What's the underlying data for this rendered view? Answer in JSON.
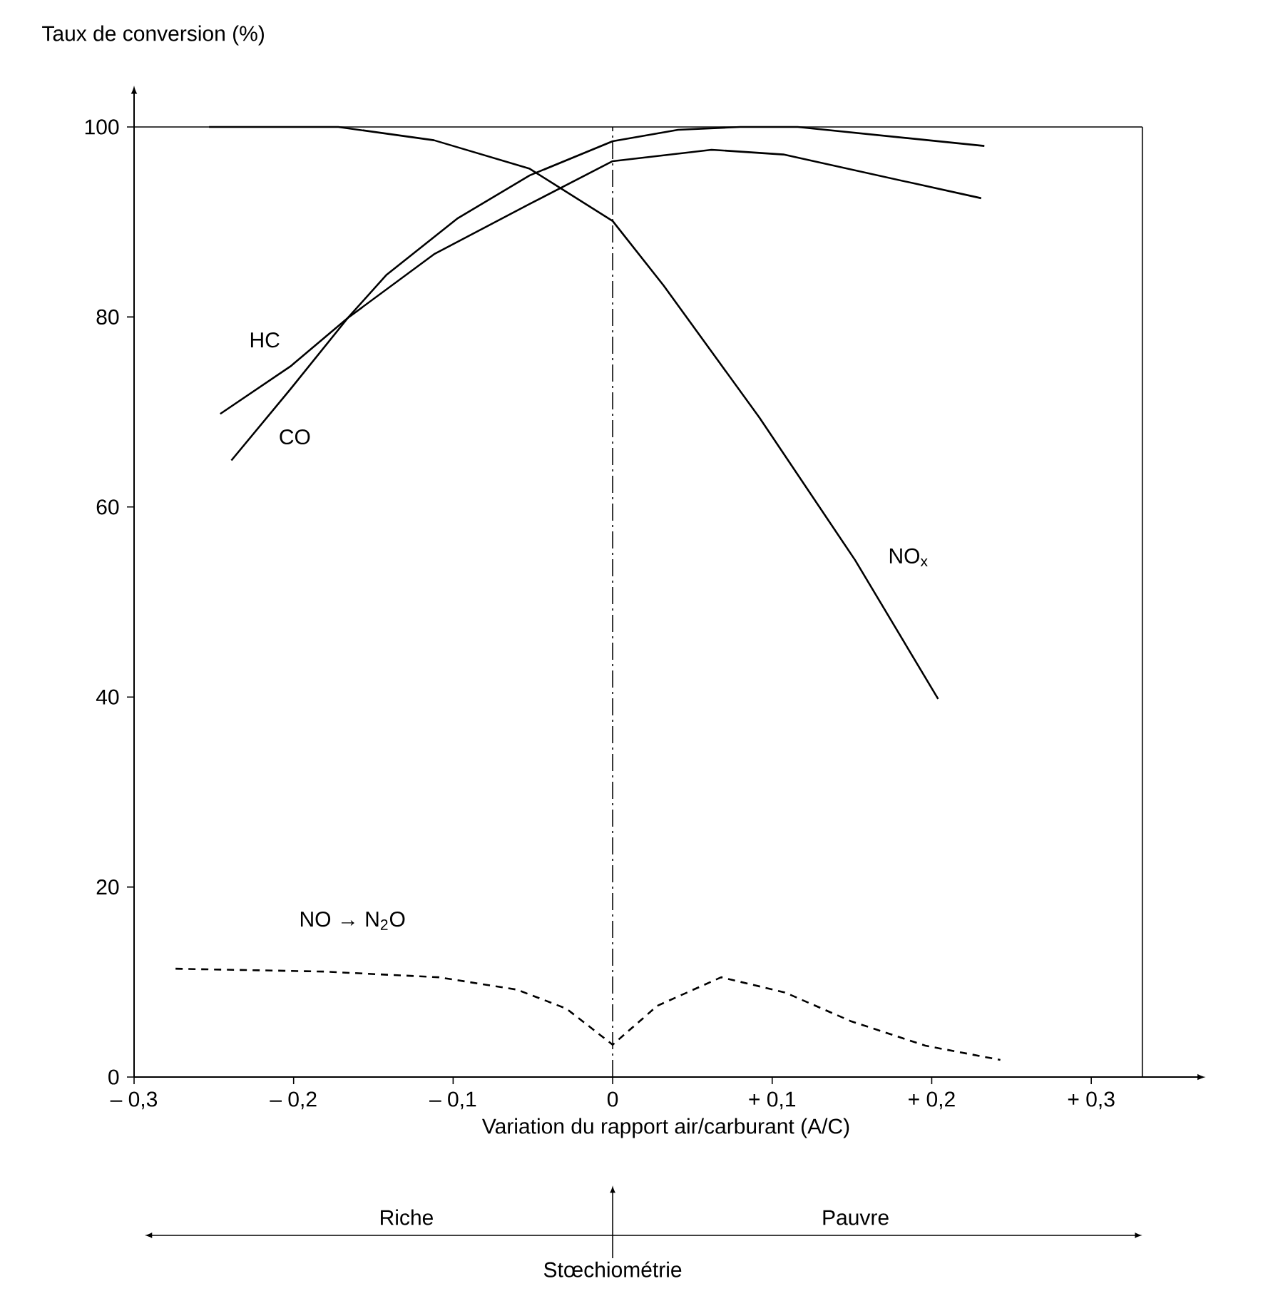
{
  "chart_data": {
    "type": "line",
    "xlabel": "Variation du rapport air/carburant (A/C)",
    "ylabel": "Taux de conversion (%)",
    "xlim": [
      -0.3,
      0.367
    ],
    "ylim": [
      0,
      100
    ],
    "xticks": [
      {
        "value": -0.3,
        "label": "– 0,3"
      },
      {
        "value": -0.2,
        "label": "– 0,2"
      },
      {
        "value": -0.1,
        "label": "– 0,1"
      },
      0,
      {
        "value": 0.1,
        "label": "+ 0,1"
      },
      {
        "value": 0.2,
        "label": "+ 0,2"
      },
      {
        "value": 0.3,
        "label": "+ 0,3"
      }
    ],
    "yticks": [
      0,
      20,
      40,
      60,
      80,
      100
    ],
    "series": [
      {
        "name": "HC",
        "color": "#000000",
        "line_style": "solid",
        "x": [
          -0.246,
          -0.202,
          -0.166,
          -0.112,
          -0.052,
          0,
          0.062,
          0.107,
          0.231
        ],
        "values": [
          69.8,
          74.8,
          79.9,
          86.6,
          91.9,
          96.4,
          97.6,
          97.1,
          92.5
        ]
      },
      {
        "name": "CO",
        "color": "#000000",
        "line_style": "solid",
        "x": [
          -0.239,
          -0.202,
          -0.166,
          -0.142,
          -0.097,
          -0.052,
          0,
          0.041,
          0.08,
          0.116,
          0.233
        ],
        "values": [
          64.9,
          72.4,
          79.9,
          84.4,
          90.4,
          94.9,
          98.5,
          99.7,
          100,
          100,
          98.0
        ]
      },
      {
        "name": "NO$_{x}$",
        "color": "#000000",
        "line_style": "solid",
        "x": [
          -0.253,
          -0.172,
          -0.112,
          -0.052,
          0,
          0.032,
          0.092,
          0.152,
          0.204
        ],
        "values": [
          100,
          100,
          98.6,
          95.6,
          90.1,
          83.3,
          69.4,
          54.4,
          39.8
        ]
      },
      {
        "name": "NO → N$_{2}$O",
        "color": "#000000",
        "line_style": "dashed",
        "x": [
          -0.274,
          -0.181,
          -0.109,
          -0.06,
          -0.029,
          0,
          0.028,
          0.068,
          0.108,
          0.149,
          0.196,
          0.243
        ],
        "values": [
          11.4,
          11.1,
          10.5,
          9.2,
          7.2,
          3.4,
          7.5,
          10.5,
          8.9,
          5.9,
          3.3,
          1.8
        ]
      }
    ],
    "ref_lines": [
      {
        "axis": "x",
        "value": 0,
        "line_style": "dashdot"
      },
      {
        "axis": "y",
        "value": 100,
        "line_style": "solid"
      },
      {
        "axis": "x",
        "value": 0.332,
        "line_style": "solid"
      }
    ],
    "annotations": [
      "Riche",
      "Pauvre",
      "Stœchiométrie"
    ]
  }
}
